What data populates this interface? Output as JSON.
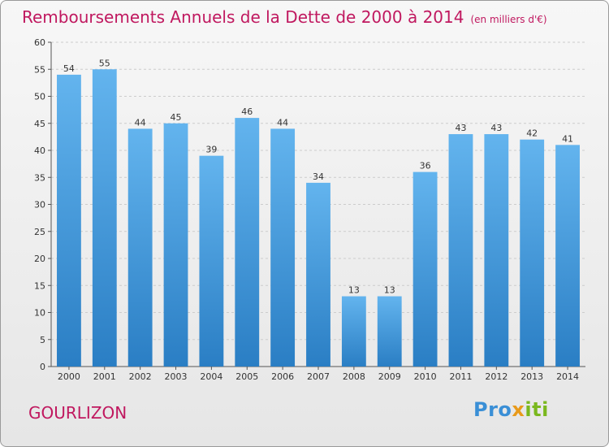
{
  "header": {
    "title": "Remboursements Annuels de la Dette de 2000 à 2014",
    "subtitle": "(en milliers d'€)"
  },
  "footer": {
    "commune": "GOURLIZON",
    "logo_parts": [
      "Pro",
      "x",
      "iti"
    ]
  },
  "colors": {
    "title": "#c0185f",
    "bar_top": "#63b4ee",
    "bar_bottom": "#2a7ec4",
    "grid": "#cccccc"
  },
  "chart_data": {
    "type": "bar",
    "title": "Remboursements Annuels de la Dette de 2000 à 2014",
    "ylabel": "en milliers d'€",
    "xlabel": "",
    "categories": [
      "2000",
      "2001",
      "2002",
      "2003",
      "2004",
      "2005",
      "2006",
      "2007",
      "2008",
      "2009",
      "2010",
      "2011",
      "2012",
      "2013",
      "2014"
    ],
    "values": [
      54,
      55,
      44,
      45,
      39,
      46,
      44,
      34,
      13,
      13,
      36,
      43,
      43,
      42,
      41
    ],
    "ylim": [
      0,
      60
    ],
    "yticks": [
      0,
      5,
      10,
      15,
      20,
      25,
      30,
      35,
      40,
      45,
      50,
      55,
      60
    ],
    "grid": true,
    "data_labels": true
  }
}
